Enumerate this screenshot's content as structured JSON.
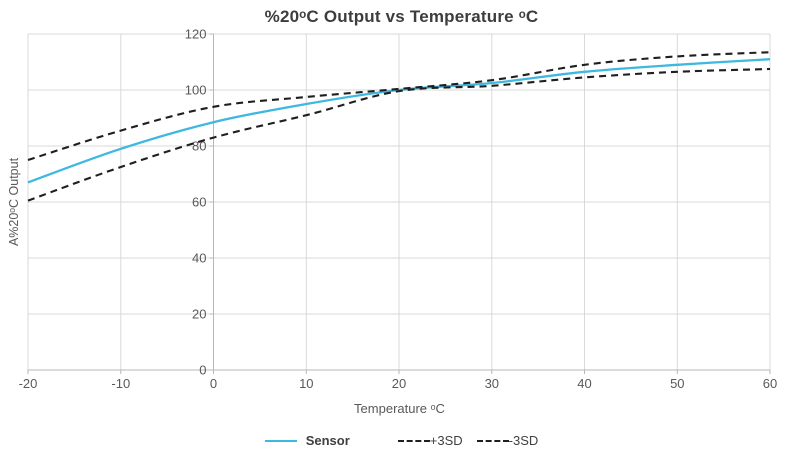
{
  "chart_data": {
    "type": "line",
    "title": "%20ᵒC Output vs Temperature ᵒC",
    "xlabel": "Temperature ᵒC",
    "ylabel": "A%20ᵒC Output",
    "xlim": [
      -20,
      60
    ],
    "ylim": [
      0,
      120
    ],
    "xticks": [
      -20,
      -10,
      0,
      10,
      20,
      30,
      40,
      50,
      60
    ],
    "yticks": [
      0,
      20,
      40,
      60,
      80,
      100,
      120
    ],
    "grid": true,
    "y_axis_cross_x": 0,
    "legend_position": "bottom",
    "x": [
      -20,
      -10,
      0,
      10,
      20,
      30,
      40,
      50,
      60
    ],
    "series": [
      {
        "name": "Sensor",
        "color": "#3fb8e0",
        "style": "solid",
        "values": [
          67,
          79,
          88.5,
          95,
          100,
          102.5,
          106.5,
          109,
          111
        ]
      },
      {
        "name": "+3SD",
        "color": "#1f1f1f",
        "style": "dashed",
        "values": [
          75,
          85.5,
          94,
          97.5,
          100.4,
          103.5,
          109,
          112,
          113.5
        ]
      },
      {
        "name": "-3SD",
        "color": "#1f1f1f",
        "style": "dashed",
        "values": [
          60.5,
          72.5,
          83,
          91,
          99.6,
          101.5,
          104.5,
          106.5,
          107.5
        ]
      }
    ]
  },
  "palette": {
    "background": "#ffffff",
    "grid": "#d9d9d9",
    "axis": "#b7b7b7",
    "tick_text": "#595959",
    "title_text": "#3d3d3d",
    "sensor_line": "#3fb8e0",
    "sd_line": "#1f1f1f"
  }
}
